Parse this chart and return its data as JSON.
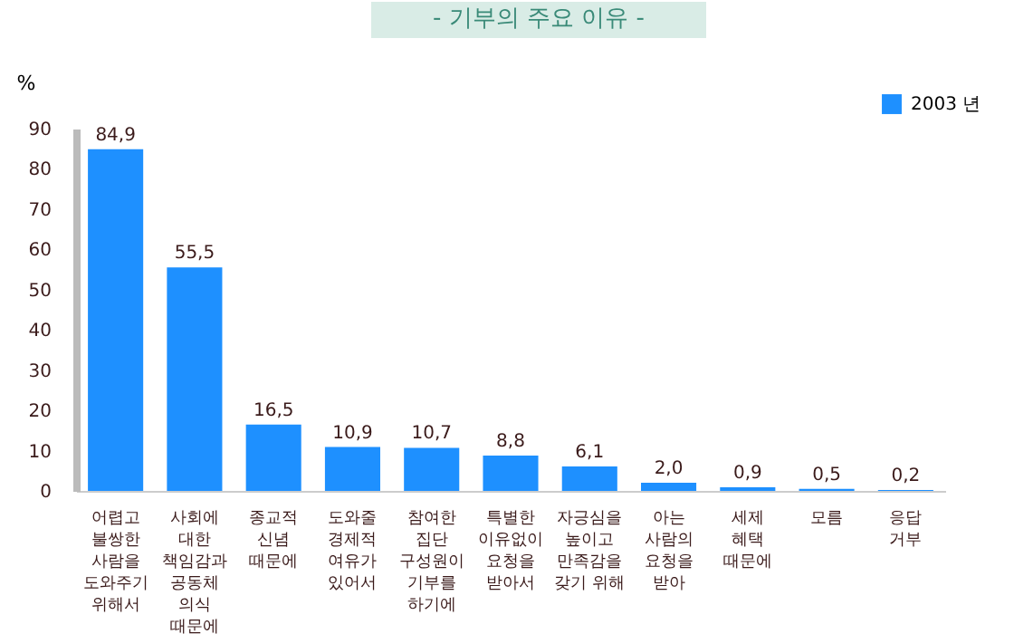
{
  "chart_data": {
    "type": "bar",
    "title": "- 기부의 주요 이유 -",
    "ylabel": "%",
    "categories": [
      "어렵고\n불쌍한\n사람을\n도와주기\n위해서",
      "사회에\n대한\n책임감과\n공동체\n의식\n때문에",
      "종교적\n신념\n때문에",
      "도와줄\n경제적\n여유가\n있어서",
      "참여한\n집단\n구성원이\n기부를\n하기에",
      "특별한\n이유없이\n요청을\n받아서",
      "자긍심을\n높이고\n만족감을\n갖기 위해",
      "아는\n사람의\n요청을\n받아",
      "세제\n혜택\n때문에",
      "모름",
      "응답\n거부"
    ],
    "series": [
      {
        "name": "2003 년",
        "color": "#1e90ff",
        "values": [
          84.9,
          55.5,
          16.5,
          10.9,
          10.7,
          8.8,
          6.1,
          2.0,
          0.9,
          0.5,
          0.2
        ],
        "value_labels": [
          "84,9",
          "55,5",
          "16,5",
          "10,9",
          "10,7",
          "8,8",
          "6,1",
          "2,0",
          "0,9",
          "0,5",
          "0,2"
        ]
      }
    ],
    "ylim": [
      0,
      90
    ],
    "yticks": [
      0,
      10,
      20,
      30,
      40,
      50,
      60,
      70,
      80,
      90
    ],
    "grid": false,
    "legend": "top right"
  }
}
